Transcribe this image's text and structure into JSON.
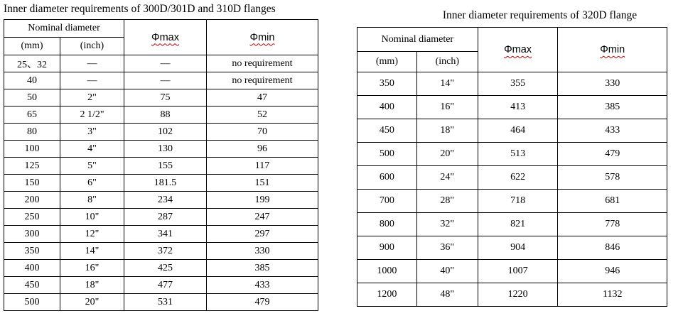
{
  "colors": {
    "text": "#000000",
    "table_border": "#000000",
    "squiggle_underline": "#c00000",
    "background": "#ffffff"
  },
  "left_table": {
    "title": "Inner diameter requirements of 300D/301D and 310D flanges",
    "header": {
      "nominal_diameter": "Nominal diameter",
      "mm": "(mm)",
      "inch": "(inch)",
      "phi_max": "Φmax",
      "phi_min": "Φmin"
    },
    "rows": [
      [
        "25、32",
        "—",
        "—",
        "no requirement"
      ],
      [
        "40",
        "—",
        "—",
        "no requirement"
      ],
      [
        "50",
        "2\"",
        "75",
        "47"
      ],
      [
        "65",
        "2 1/2\"",
        "88",
        "52"
      ],
      [
        "80",
        "3\"",
        "102",
        "70"
      ],
      [
        "100",
        "4\"",
        "130",
        "96"
      ],
      [
        "125",
        "5\"",
        "155",
        "117"
      ],
      [
        "150",
        "6\"",
        "181.5",
        "151"
      ],
      [
        "200",
        "8\"",
        "234",
        "199"
      ],
      [
        "250",
        "10\"",
        "287",
        "247"
      ],
      [
        "300",
        "12\"",
        "341",
        "297"
      ],
      [
        "350",
        "14\"",
        "372",
        "330"
      ],
      [
        "400",
        "16\"",
        "425",
        "385"
      ],
      [
        "450",
        "18\"",
        "477",
        "433"
      ],
      [
        "500",
        "20\"",
        "531",
        "479"
      ]
    ]
  },
  "right_table": {
    "title": "Inner diameter requirements of 320D flange",
    "header": {
      "nominal_diameter": "Nominal diameter",
      "mm": "(mm)",
      "inch": "(inch)",
      "phi_max": "Φmax",
      "phi_min": "Φmin"
    },
    "rows": [
      [
        "350",
        "14\"",
        "355",
        "330"
      ],
      [
        "400",
        "16\"",
        "413",
        "385"
      ],
      [
        "450",
        "18\"",
        "464",
        "433"
      ],
      [
        "500",
        "20\"",
        "513",
        "479"
      ],
      [
        "600",
        "24\"",
        "622",
        "578"
      ],
      [
        "700",
        "28\"",
        "718",
        "681"
      ],
      [
        "800",
        "32\"",
        "821",
        "778"
      ],
      [
        "900",
        "36\"",
        "904",
        "846"
      ],
      [
        "1000",
        "40\"",
        "1007",
        "946"
      ],
      [
        "1200",
        "48\"",
        "1220",
        "1132"
      ]
    ]
  }
}
